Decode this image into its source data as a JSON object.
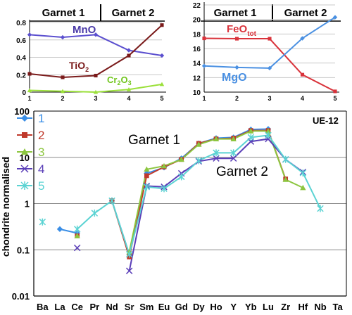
{
  "chart_data": [
    {
      "type": "line",
      "panel": "top-left",
      "x": [
        1,
        2,
        3,
        4,
        5
      ],
      "ylim": [
        0,
        0.8
      ],
      "yticks": [
        "0",
        "0.2",
        "0.4",
        "0.6",
        "0.8"
      ],
      "xticks": [
        "1",
        "2",
        "3",
        "4",
        "5"
      ],
      "grid": true,
      "group_labels": [
        "Garnet 1",
        "Garnet 2"
      ],
      "series": [
        {
          "name": "MnO",
          "name_sub": "",
          "values": [
            0.66,
            0.63,
            0.66,
            0.48,
            0.42
          ],
          "color": "#5b4fcf",
          "label_color": "#4a3aa8",
          "marker": "diamond"
        },
        {
          "name": "TiO",
          "name_sub": "2",
          "values": [
            0.21,
            0.17,
            0.19,
            0.42,
            0.77
          ],
          "color": "#7a1a1a",
          "label_color": "#7a1a1a",
          "marker": "square"
        },
        {
          "name": "Cr",
          "name_sub": "2",
          "name_mid": "O",
          "name_sub2": "3",
          "values": [
            0.02,
            0.01,
            0.0,
            0.03,
            0.09
          ],
          "color": "#9be03a",
          "label_color": "#6fc51b",
          "marker": "triangle"
        }
      ]
    },
    {
      "type": "line",
      "panel": "top-right",
      "x": [
        1,
        2,
        3,
        4,
        5
      ],
      "ylim": [
        10,
        22
      ],
      "yticks": [
        "10",
        "12",
        "14",
        "16",
        "18",
        "20",
        "22"
      ],
      "xticks": [
        "1",
        "2",
        "3",
        "4",
        "5"
      ],
      "grid": true,
      "group_labels": [
        "Garnet 1",
        "Garnet 2"
      ],
      "series": [
        {
          "name": "FeO",
          "name_sub": "tot",
          "values": [
            17.4,
            17.35,
            17.35,
            12.4,
            10.1
          ],
          "color": "#d9333b",
          "label_color": "#d9333b",
          "marker": "square"
        },
        {
          "name": "MgO",
          "name_sub": "",
          "values": [
            13.6,
            13.4,
            13.3,
            17.4,
            20.3
          ],
          "color": "#4a90e2",
          "label_color": "#4a90e2",
          "marker": "diamond"
        }
      ]
    },
    {
      "type": "line",
      "panel": "bottom",
      "yscale": "log",
      "ylim": [
        0.01,
        100
      ],
      "ylabel": "chondrite normalised",
      "yticks": [
        "0.01",
        "0.1",
        "1",
        "10",
        "100"
      ],
      "categories": [
        "Ba",
        "La",
        "Ce",
        "Pr",
        "Nd",
        "Sr",
        "Sm",
        "Eu",
        "Gd",
        "Dy",
        "Ho",
        "Y",
        "Yb",
        "Lu",
        "Zr",
        "Hf",
        "Nb",
        "Ta"
      ],
      "sample_label": "UE-12",
      "annotations": [
        "Garnet 1",
        "Garnet 2"
      ],
      "grid": true,
      "legend_position": "top-left",
      "series": [
        {
          "name": "1",
          "color": "#3a8ee6",
          "label_color": "#3a8ee6",
          "marker": "diamond",
          "values": [
            null,
            0.28,
            0.23,
            null,
            1.15,
            0.08,
            4.5,
            6.0,
            9.5,
            20.0,
            26.0,
            27.0,
            40.0,
            41.0,
            null,
            null,
            null,
            null
          ]
        },
        {
          "name": "2",
          "color": "#c0392b",
          "label_color": "#c0392b",
          "marker": "square",
          "values": [
            null,
            null,
            0.2,
            null,
            1.15,
            0.07,
            4.0,
            6.2,
            9.0,
            20.0,
            25.0,
            26.0,
            38.0,
            38.0,
            3.4,
            null,
            null,
            null
          ]
        },
        {
          "name": "3",
          "color": "#8cc63f",
          "label_color": "#8cc63f",
          "marker": "triangle",
          "values": [
            null,
            null,
            0.2,
            null,
            null,
            0.09,
            5.5,
            6.5,
            9.0,
            19.0,
            25.0,
            25.0,
            37.0,
            37.0,
            3.3,
            2.2,
            null,
            null
          ]
        },
        {
          "name": "4",
          "color": "#5b3fb8",
          "label_color": "#5b3fb8",
          "marker": "x",
          "values": [
            null,
            null,
            0.11,
            null,
            null,
            0.035,
            2.4,
            2.3,
            4.5,
            8.2,
            9.5,
            9.5,
            22.0,
            25.0,
            9.0,
            4.8,
            null,
            null
          ]
        },
        {
          "name": "5",
          "color": "#5bd3d3",
          "label_color": "#5bd3d3",
          "marker": "asterisk",
          "values": [
            0.4,
            null,
            0.28,
            0.62,
            1.15,
            0.08,
            2.3,
            2.1,
            3.8,
            8.5,
            12.5,
            12.5,
            27.0,
            30.0,
            9.0,
            4.6,
            0.78,
            null
          ]
        }
      ]
    }
  ]
}
